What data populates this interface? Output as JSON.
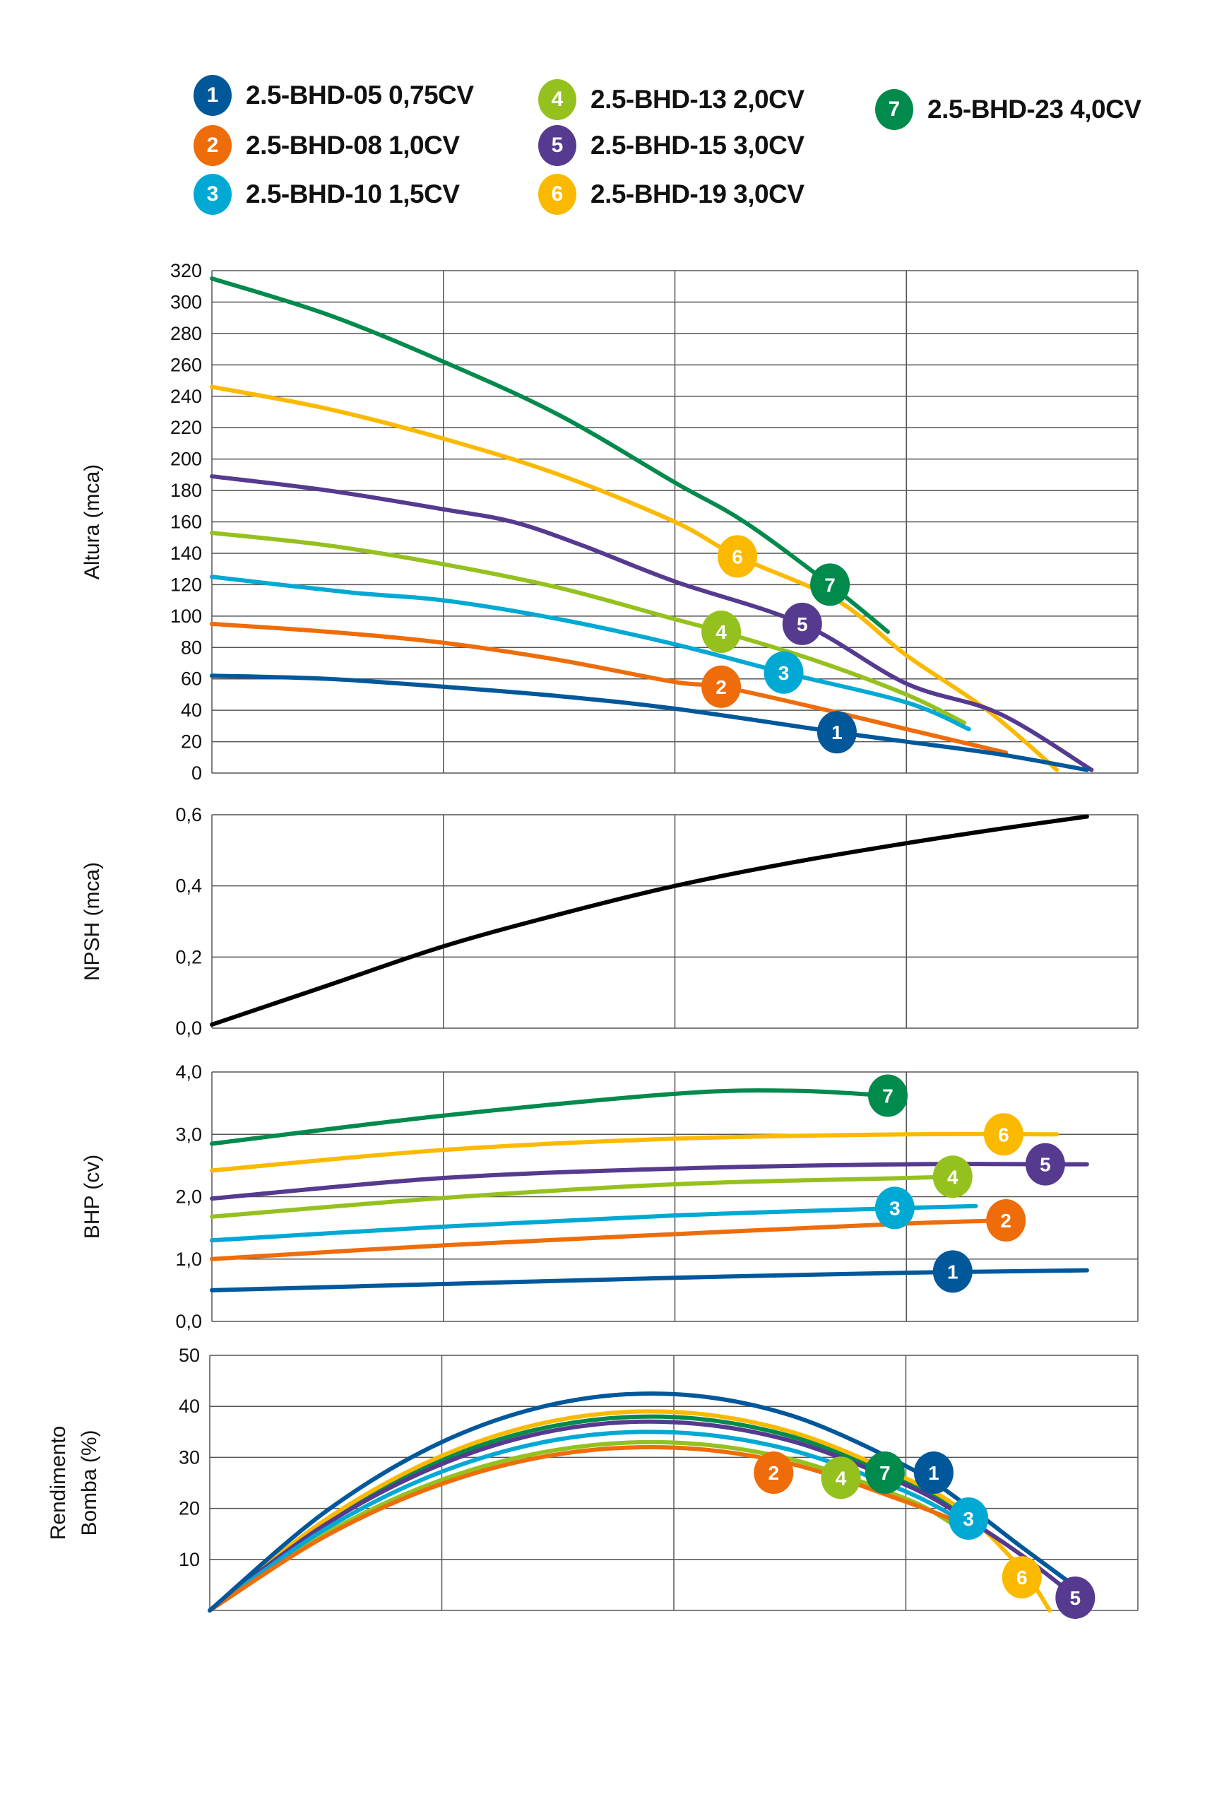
{
  "legend": [
    {
      "num": "1",
      "label": "2.5-BHD-05 0,75CV",
      "color": "#00589B"
    },
    {
      "num": "2",
      "label": "2.5-BHD-08 1,0CV",
      "color": "#EE6C0A"
    },
    {
      "num": "3",
      "label": "2.5-BHD-10 1,5CV",
      "color": "#00A9D4"
    },
    {
      "num": "4",
      "label": "2.5-BHD-13 2,0CV",
      "color": "#95C11F"
    },
    {
      "num": "5",
      "label": "2.5-BHD-15 3,0CV",
      "color": "#553A8F"
    },
    {
      "num": "6",
      "label": "2.5-BHD-19 3,0CV",
      "color": "#FBB900"
    },
    {
      "num": "7",
      "label": "2.5-BHD-23 4,0CV",
      "color": "#008A4B"
    }
  ],
  "chart_data": [
    {
      "type": "line",
      "ylabel": "Altura (mca)",
      "xlabel": "",
      "ylim": [
        0,
        320
      ],
      "xlim": [
        0,
        4
      ],
      "grid": true,
      "yticks": [
        "0",
        "20",
        "40",
        "60",
        "80",
        "100",
        "120",
        "140",
        "160",
        "180",
        "200",
        "220",
        "240",
        "260",
        "280",
        "300",
        "320"
      ],
      "series": [
        {
          "name": "1",
          "points": [
            [
              0,
              62
            ],
            [
              0.5,
              60
            ],
            [
              1,
              55
            ],
            [
              1.5,
              49
            ],
            [
              2,
              41
            ],
            [
              2.7,
              26
            ],
            [
              3,
              20
            ],
            [
              3.4,
              12
            ],
            [
              3.78,
              2
            ]
          ],
          "marker": [
            2.7,
            26
          ]
        },
        {
          "name": "2",
          "points": [
            [
              0,
              95
            ],
            [
              0.5,
              90
            ],
            [
              1,
              83
            ],
            [
              1.5,
              72
            ],
            [
              2,
              58
            ],
            [
              2.2,
              55
            ],
            [
              2.6,
              42
            ],
            [
              3,
              28
            ],
            [
              3.43,
              13
            ]
          ],
          "marker": [
            2.2,
            55
          ]
        },
        {
          "name": "3",
          "points": [
            [
              0,
              125
            ],
            [
              0.6,
              115
            ],
            [
              1,
              110
            ],
            [
              1.5,
              98
            ],
            [
              2,
              82
            ],
            [
              2.47,
              64
            ],
            [
              3,
              45
            ],
            [
              3.27,
              28
            ]
          ],
          "marker": [
            2.47,
            64
          ]
        },
        {
          "name": "4",
          "points": [
            [
              0,
              153
            ],
            [
              0.5,
              145
            ],
            [
              1,
              133
            ],
            [
              1.5,
              118
            ],
            [
              2,
              98
            ],
            [
              2.2,
              90
            ],
            [
              2.6,
              72
            ],
            [
              3,
              50
            ],
            [
              3.25,
              32
            ]
          ],
          "marker": [
            2.2,
            90
          ]
        },
        {
          "name": "5",
          "points": [
            [
              0,
              189
            ],
            [
              0.5,
              180
            ],
            [
              1,
              168
            ],
            [
              1.3,
              160
            ],
            [
              1.6,
              145
            ],
            [
              2,
              122
            ],
            [
              2.55,
              95
            ],
            [
              3,
              57
            ],
            [
              3.4,
              38
            ],
            [
              3.8,
              2
            ]
          ],
          "marker": [
            2.55,
            95
          ]
        },
        {
          "name": "6",
          "points": [
            [
              0,
              246
            ],
            [
              0.5,
              232
            ],
            [
              1,
              213
            ],
            [
              1.5,
              190
            ],
            [
              2,
              160
            ],
            [
              2.27,
              138
            ],
            [
              2.7,
              110
            ],
            [
              3,
              75
            ],
            [
              3.35,
              40
            ],
            [
              3.65,
              2
            ]
          ],
          "marker": [
            2.27,
            138
          ]
        },
        {
          "name": "7",
          "points": [
            [
              0,
              315
            ],
            [
              0.5,
              292
            ],
            [
              1,
              262
            ],
            [
              1.5,
              228
            ],
            [
              2,
              185
            ],
            [
              2.3,
              160
            ],
            [
              2.67,
              120
            ],
            [
              2.92,
              90
            ]
          ],
          "marker": [
            2.67,
            120
          ]
        }
      ]
    },
    {
      "type": "line",
      "ylabel": "NPSH (mca)",
      "xlabel": "",
      "ylim": [
        0,
        0.6
      ],
      "xlim": [
        0,
        4
      ],
      "grid": true,
      "yticks": [
        "0,0",
        "0,2",
        "0,4",
        "0,6"
      ],
      "series": [
        {
          "points": [
            [
              0,
              0.01
            ],
            [
              0.5,
              0.12
            ],
            [
              1,
              0.23
            ],
            [
              1.5,
              0.32
            ],
            [
              2,
              0.4
            ],
            [
              2.5,
              0.465
            ],
            [
              3,
              0.52
            ],
            [
              3.4,
              0.56
            ],
            [
              3.78,
              0.595
            ]
          ],
          "color": "#000000"
        }
      ]
    },
    {
      "type": "line",
      "ylabel": "BHP (cv)",
      "xlabel": "",
      "ylim": [
        0,
        4
      ],
      "xlim": [
        0,
        4
      ],
      "grid": true,
      "yticks": [
        "0,0",
        "1,0",
        "2,0",
        "3,0",
        "4,0"
      ],
      "series": [
        {
          "name": "1",
          "points": [
            [
              0,
              0.5
            ],
            [
              1,
              0.6
            ],
            [
              2,
              0.7
            ],
            [
              3,
              0.78
            ],
            [
              3.78,
              0.82
            ]
          ],
          "marker": [
            3.2,
            0.8
          ]
        },
        {
          "name": "2",
          "points": [
            [
              0,
              1.0
            ],
            [
              1,
              1.22
            ],
            [
              2,
              1.4
            ],
            [
              3,
              1.57
            ],
            [
              3.43,
              1.62
            ]
          ],
          "marker": [
            3.43,
            1.62
          ]
        },
        {
          "name": "3",
          "points": [
            [
              0,
              1.3
            ],
            [
              1,
              1.52
            ],
            [
              2,
              1.7
            ],
            [
              3,
              1.82
            ],
            [
              3.3,
              1.85
            ]
          ],
          "marker": [
            2.95,
            1.82
          ]
        },
        {
          "name": "4",
          "points": [
            [
              0,
              1.68
            ],
            [
              1,
              1.98
            ],
            [
              2,
              2.2
            ],
            [
              3,
              2.3
            ],
            [
              3.2,
              2.32
            ]
          ],
          "marker": [
            3.2,
            2.32
          ]
        },
        {
          "name": "5",
          "points": [
            [
              0,
              1.97
            ],
            [
              1,
              2.3
            ],
            [
              2,
              2.45
            ],
            [
              3,
              2.52
            ],
            [
              3.78,
              2.52
            ]
          ],
          "marker": [
            3.6,
            2.52
          ]
        },
        {
          "name": "6",
          "points": [
            [
              0,
              2.42
            ],
            [
              1,
              2.75
            ],
            [
              2,
              2.93
            ],
            [
              3,
              3.0
            ],
            [
              3.65,
              3.0
            ]
          ],
          "marker": [
            3.42,
            3.0
          ]
        },
        {
          "name": "7",
          "points": [
            [
              0,
              2.85
            ],
            [
              1,
              3.3
            ],
            [
              2,
              3.65
            ],
            [
              2.5,
              3.7
            ],
            [
              2.92,
              3.62
            ]
          ],
          "marker": [
            2.92,
            3.62
          ]
        }
      ]
    },
    {
      "type": "line",
      "ylabel": "Rendimento Bomba (%)",
      "ylabel_lines": [
        "Rendimento",
        "Bomba (%)"
      ],
      "xlabel": "",
      "ylim": [
        0,
        50
      ],
      "xlim": [
        0,
        4
      ],
      "grid": true,
      "yticks": [
        "",
        "10",
        "20",
        "30",
        "40",
        "50"
      ],
      "series": [
        {
          "name": "1",
          "points": [
            [
              0,
              0
            ],
            [
              0.5,
              19.4
            ],
            [
              1,
              33
            ],
            [
              1.5,
              40.6
            ],
            [
              2,
              42.4
            ],
            [
              2.5,
              38.3
            ],
            [
              3,
              28.3
            ],
            [
              3.25,
              21
            ],
            [
              3.5,
              12.4
            ],
            [
              3.75,
              4
            ]
          ],
          "marker": [
            3.12,
            27
          ]
        },
        {
          "name": "2",
          "points": [
            [
              0,
              0
            ],
            [
              0.5,
              14.6
            ],
            [
              1,
              24.8
            ],
            [
              1.5,
              30.6
            ],
            [
              2,
              31.9
            ],
            [
              2.5,
              28.8
            ],
            [
              3,
              21.3
            ],
            [
              3.3,
              16
            ]
          ],
          "marker": [
            2.43,
            27
          ]
        },
        {
          "name": "3",
          "points": [
            [
              0,
              0
            ],
            [
              0.5,
              16
            ],
            [
              1,
              27.2
            ],
            [
              1.5,
              33.5
            ],
            [
              2,
              34.9
            ],
            [
              2.5,
              31.5
            ],
            [
              3,
              23.3
            ],
            [
              3.3,
              16
            ]
          ],
          "marker": [
            3.27,
            18
          ]
        },
        {
          "name": "4",
          "points": [
            [
              0,
              0
            ],
            [
              0.5,
              15.1
            ],
            [
              1,
              25.6
            ],
            [
              1.5,
              31.5
            ],
            [
              2,
              32.9
            ],
            [
              2.5,
              29.7
            ],
            [
              3,
              21.9
            ],
            [
              3.2,
              17
            ]
          ],
          "marker": [
            2.72,
            26
          ]
        },
        {
          "name": "5",
          "points": [
            [
              0,
              0
            ],
            [
              0.5,
              16.9
            ],
            [
              1,
              28.7
            ],
            [
              1.5,
              35.4
            ],
            [
              2,
              36.9
            ],
            [
              2.5,
              33.3
            ],
            [
              3,
              24.6
            ],
            [
              3.25,
              18.3
            ],
            [
              3.5,
              10.8
            ],
            [
              3.75,
              2
            ]
          ],
          "marker": [
            3.73,
            2.5
          ]
        },
        {
          "name": "6",
          "points": [
            [
              0,
              0
            ],
            [
              0.5,
              17.8
            ],
            [
              1,
              30.3
            ],
            [
              1.5,
              37.3
            ],
            [
              2,
              38.9
            ],
            [
              2.5,
              35.1
            ],
            [
              3,
              25.9
            ],
            [
              3.25,
              19.3
            ],
            [
              3.5,
              8
            ],
            [
              3.62,
              0
            ]
          ],
          "marker": [
            3.5,
            6.5
          ]
        },
        {
          "name": "7",
          "points": [
            [
              0,
              0
            ],
            [
              0.5,
              17.4
            ],
            [
              1,
              29.5
            ],
            [
              1.5,
              36.3
            ],
            [
              2,
              37.9
            ],
            [
              2.5,
              34.2
            ],
            [
              3,
              25.3
            ],
            [
              3.25,
              18.8
            ]
          ],
          "marker": [
            2.91,
            27
          ]
        }
      ]
    }
  ]
}
